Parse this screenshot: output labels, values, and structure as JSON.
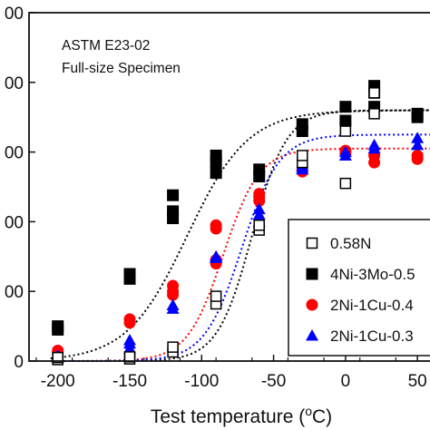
{
  "chart_data": {
    "type": "scatter",
    "title": "",
    "xlabel": "Test temperature (oC)",
    "ylabel": "",
    "xlim": [
      -220,
      60
    ],
    "ylim": [
      0,
      500
    ],
    "x_ticks": [
      -200,
      -150,
      -100,
      -50,
      0,
      50
    ],
    "x_tick_labels": [
      "-200",
      "-150",
      "-100",
      "-50",
      "0",
      "50"
    ],
    "y_ticks": [
      0,
      100,
      200,
      300,
      400,
      500
    ],
    "y_tick_labels": [
      "0",
      "00",
      "00",
      "00",
      "00",
      "00"
    ],
    "annotations": [
      "ASTM E23-02",
      "Full-size Specimen"
    ],
    "legend_position": "bottom-right",
    "grid": false,
    "series": [
      {
        "name": "0.58N",
        "marker": "square-open",
        "color": "#000000",
        "points": [
          [
            -200,
            2
          ],
          [
            -200,
            5
          ],
          [
            -150,
            3
          ],
          [
            -150,
            6
          ],
          [
            -120,
            13
          ],
          [
            -120,
            20
          ],
          [
            -90,
            82
          ],
          [
            -90,
            93
          ],
          [
            -60,
            188
          ],
          [
            -60,
            195
          ],
          [
            -30,
            285
          ],
          [
            -30,
            295
          ],
          [
            0,
            255
          ],
          [
            0,
            330
          ],
          [
            20,
            355
          ],
          [
            20,
            385
          ]
        ],
        "fit": {
          "lower": 0,
          "upper": 360,
          "t0": -65,
          "c": 24
        }
      },
      {
        "name": "4Ni-3Mo-0.5",
        "marker": "square-filled",
        "color": "#000000",
        "points": [
          [
            -200,
            45
          ],
          [
            -200,
            50
          ],
          [
            -150,
            118
          ],
          [
            -150,
            125
          ],
          [
            -120,
            205
          ],
          [
            -120,
            215
          ],
          [
            -120,
            238
          ],
          [
            -90,
            270
          ],
          [
            -90,
            285
          ],
          [
            -90,
            295
          ],
          [
            -60,
            265
          ],
          [
            -60,
            275
          ],
          [
            -30,
            330
          ],
          [
            -30,
            340
          ],
          [
            0,
            345
          ],
          [
            0,
            365
          ],
          [
            20,
            365
          ],
          [
            20,
            385
          ],
          [
            20,
            395
          ],
          [
            50,
            350
          ],
          [
            50,
            355
          ]
        ],
        "fit": {
          "lower": 0,
          "upper": 360,
          "t0": -110,
          "c": 42
        }
      },
      {
        "name": "2Ni-1Cu-0.4",
        "marker": "circle-filled",
        "color": "#ff0000",
        "points": [
          [
            -200,
            12
          ],
          [
            -200,
            15
          ],
          [
            -150,
            55
          ],
          [
            -150,
            60
          ],
          [
            -120,
            95
          ],
          [
            -120,
            100
          ],
          [
            -120,
            108
          ],
          [
            -90,
            140
          ],
          [
            -90,
            145
          ],
          [
            -90,
            190
          ],
          [
            -90,
            195
          ],
          [
            -60,
            230
          ],
          [
            -60,
            235
          ],
          [
            -60,
            240
          ],
          [
            -30,
            272
          ],
          [
            -30,
            278
          ],
          [
            0,
            298
          ],
          [
            0,
            302
          ],
          [
            20,
            285
          ],
          [
            20,
            295
          ],
          [
            50,
            290
          ],
          [
            50,
            295
          ]
        ],
        "fit": {
          "lower": 0,
          "upper": 305,
          "t0": -85,
          "c": 25
        }
      },
      {
        "name": "2Ni-1Cu-0.3",
        "marker": "triangle-filled",
        "color": "#0000ff",
        "points": [
          [
            -200,
            5
          ],
          [
            -200,
            8
          ],
          [
            -150,
            18
          ],
          [
            -150,
            25
          ],
          [
            -150,
            30
          ],
          [
            -120,
            75
          ],
          [
            -120,
            80
          ],
          [
            -90,
            148
          ],
          [
            -90,
            150
          ],
          [
            -60,
            200
          ],
          [
            -60,
            210
          ],
          [
            -60,
            218
          ],
          [
            -30,
            275
          ],
          [
            -30,
            280
          ],
          [
            0,
            295
          ],
          [
            0,
            300
          ],
          [
            20,
            305
          ],
          [
            20,
            310
          ],
          [
            50,
            310
          ],
          [
            50,
            320
          ]
        ],
        "fit": {
          "lower": 0,
          "upper": 325,
          "t0": -72,
          "c": 26
        }
      }
    ]
  }
}
